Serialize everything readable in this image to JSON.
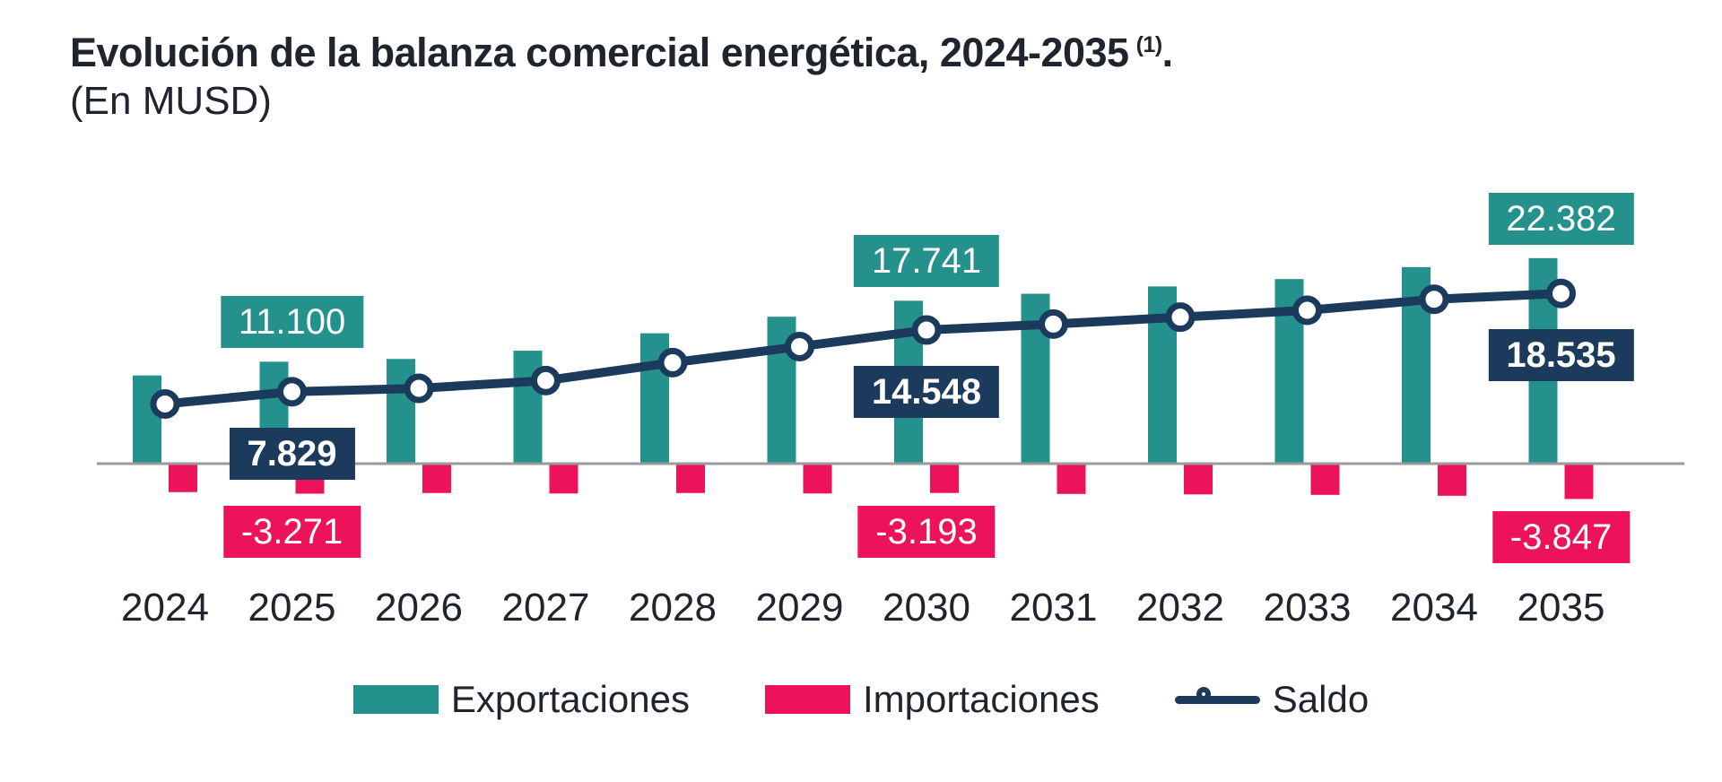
{
  "title": {
    "main": "Evolución de la balanza comercial energética, 2024-2035",
    "footnote_marker": "(1)",
    "suffix": ".",
    "subtitle": "(En MUSD)"
  },
  "colors": {
    "teal": "#25918c",
    "pink": "#ec135b",
    "navy": "#1b3a5c",
    "axis": "#9a9a9a",
    "text": "#20242c"
  },
  "chart_data": {
    "type": "bar",
    "subtype": "grouped bars with overlay line",
    "title": "Evolución de la balanza comercial energética, 2024-2035 (1).",
    "unit_label": "En MUSD",
    "xlabel": "",
    "ylabel": "",
    "ylim": [
      -4500,
      23500
    ],
    "grid": false,
    "legend_position": "bottom",
    "categories": [
      2024,
      2025,
      2026,
      2027,
      2028,
      2029,
      2030,
      2031,
      2032,
      2033,
      2034,
      2035
    ],
    "series": [
      {
        "name": "Exportaciones",
        "type": "bar",
        "color_key": "teal",
        "values": [
          9600,
          11100,
          11400,
          12300,
          14200,
          16000,
          17741,
          18500,
          19300,
          20100,
          21400,
          22382
        ]
      },
      {
        "name": "Importaciones",
        "type": "bar",
        "color_key": "pink",
        "values": [
          -3100,
          -3271,
          -3200,
          -3250,
          -3200,
          -3250,
          -3193,
          -3300,
          -3350,
          -3400,
          -3500,
          -3847
        ]
      },
      {
        "name": "Saldo",
        "type": "line",
        "color_key": "navy",
        "values": [
          6500,
          7829,
          8200,
          9050,
          11000,
          12750,
          14548,
          15200,
          15950,
          16700,
          17900,
          18535
        ]
      }
    ],
    "annotations": [
      {
        "year": 2025,
        "series_key": "exportaciones",
        "value": 11100,
        "label": "11.100"
      },
      {
        "year": 2025,
        "series_key": "saldo",
        "value": 7829,
        "label": "7.829"
      },
      {
        "year": 2025,
        "series_key": "importaciones",
        "value": -3271,
        "label": "-3.271"
      },
      {
        "year": 2030,
        "series_key": "exportaciones",
        "value": 17741,
        "label": "17.741"
      },
      {
        "year": 2030,
        "series_key": "saldo",
        "value": 14548,
        "label": "14.548"
      },
      {
        "year": 2030,
        "series_key": "importaciones",
        "value": -3193,
        "label": "-3.193"
      },
      {
        "year": 2035,
        "series_key": "exportaciones",
        "value": 22382,
        "label": "22.382"
      },
      {
        "year": 2035,
        "series_key": "saldo",
        "value": 18535,
        "label": "18.535"
      },
      {
        "year": 2035,
        "series_key": "importaciones",
        "value": -3847,
        "label": "-3.847"
      }
    ]
  }
}
